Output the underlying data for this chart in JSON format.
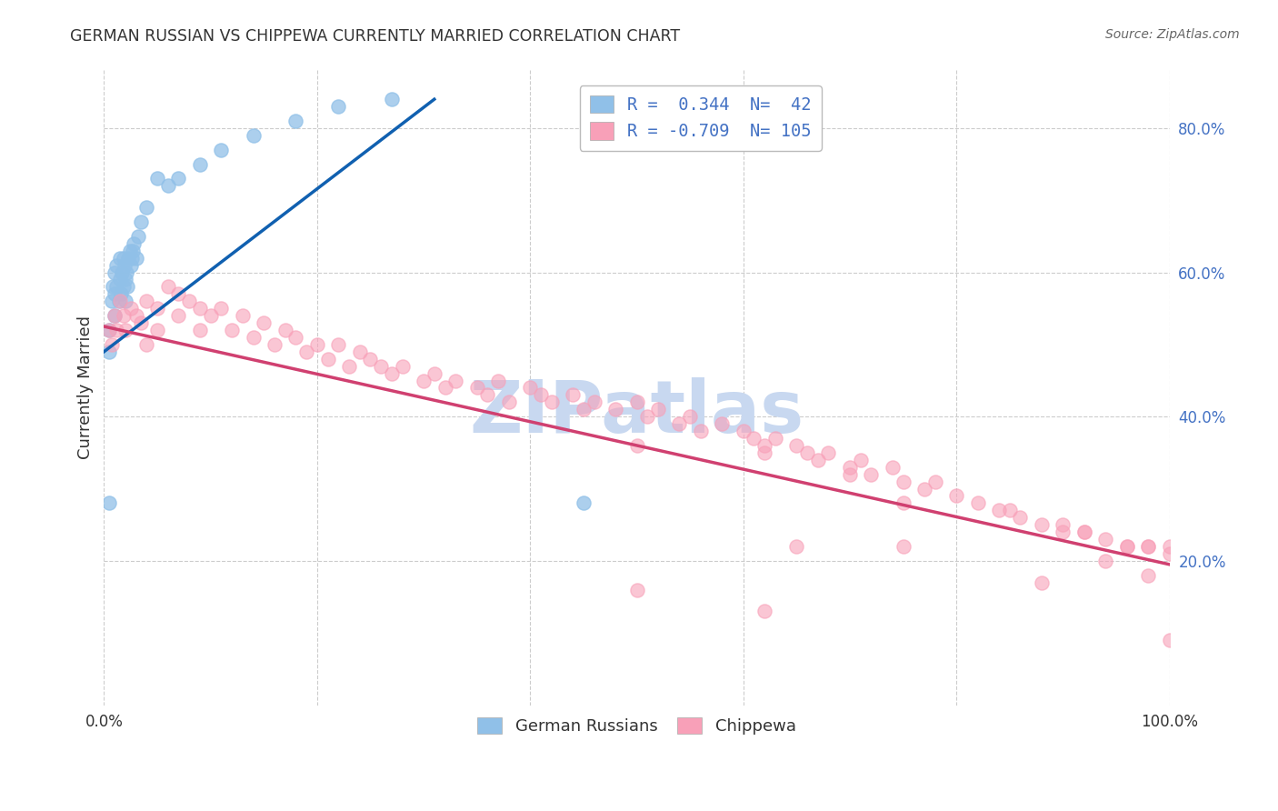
{
  "title": "GERMAN RUSSIAN VS CHIPPEWA CURRENTLY MARRIED CORRELATION CHART",
  "source": "Source: ZipAtlas.com",
  "ylabel": "Currently Married",
  "blue_color": "#90c0e8",
  "blue_edge_color": "#90c0e8",
  "pink_color": "#f8a0b8",
  "pink_edge_color": "#f8a0b8",
  "blue_line_color": "#1060b0",
  "pink_line_color": "#d04070",
  "watermark_text": "ZIPatlas",
  "watermark_color": "#c8d8f0",
  "legend_blue_label": "R =  0.344  N=  42",
  "legend_pink_label": "R = -0.709  N= 105",
  "legend_text_color": "#4472c4",
  "bottom_legend_blue": "German Russians",
  "bottom_legend_pink": "Chippewa",
  "background_color": "#ffffff",
  "grid_color": "#cccccc",
  "title_color": "#333333",
  "source_color": "#666666",
  "ylabel_color": "#333333",
  "tick_color_y": "#4472c4",
  "tick_color_x": "#333333",
  "xlim": [
    0.0,
    1.0
  ],
  "ylim": [
    0.0,
    0.88
  ],
  "ytick_values": [
    0.2,
    0.4,
    0.6,
    0.8
  ],
  "ytick_labels": [
    "20.0%",
    "40.0%",
    "60.0%",
    "80.0%"
  ],
  "blue_line_x0": 0.0,
  "blue_line_y0": 0.49,
  "blue_line_x1": 0.31,
  "blue_line_y1": 0.84,
  "pink_line_x0": 0.0,
  "pink_line_y0": 0.525,
  "pink_line_x1": 1.0,
  "pink_line_y1": 0.195,
  "blue_x": [
    0.005,
    0.005,
    0.007,
    0.008,
    0.01,
    0.01,
    0.01,
    0.012,
    0.012,
    0.014,
    0.015,
    0.015,
    0.016,
    0.017,
    0.018,
    0.018,
    0.019,
    0.02,
    0.02,
    0.021,
    0.022,
    0.023,
    0.024,
    0.025,
    0.026,
    0.027,
    0.028,
    0.03,
    0.032,
    0.035,
    0.04,
    0.05,
    0.06,
    0.07,
    0.09,
    0.11,
    0.14,
    0.18,
    0.22,
    0.27,
    0.005,
    0.45
  ],
  "blue_y": [
    0.49,
    0.52,
    0.56,
    0.58,
    0.54,
    0.57,
    0.6,
    0.58,
    0.61,
    0.56,
    0.59,
    0.62,
    0.57,
    0.6,
    0.58,
    0.62,
    0.61,
    0.56,
    0.59,
    0.6,
    0.58,
    0.62,
    0.63,
    0.61,
    0.62,
    0.63,
    0.64,
    0.62,
    0.65,
    0.67,
    0.69,
    0.73,
    0.72,
    0.73,
    0.75,
    0.77,
    0.79,
    0.81,
    0.83,
    0.84,
    0.28,
    0.28
  ],
  "pink_x": [
    0.005,
    0.007,
    0.01,
    0.012,
    0.015,
    0.018,
    0.02,
    0.025,
    0.03,
    0.035,
    0.04,
    0.04,
    0.05,
    0.05,
    0.06,
    0.07,
    0.07,
    0.08,
    0.09,
    0.09,
    0.1,
    0.11,
    0.12,
    0.13,
    0.14,
    0.15,
    0.16,
    0.17,
    0.18,
    0.19,
    0.2,
    0.21,
    0.22,
    0.23,
    0.24,
    0.25,
    0.26,
    0.27,
    0.28,
    0.3,
    0.31,
    0.32,
    0.33,
    0.35,
    0.36,
    0.37,
    0.38,
    0.4,
    0.41,
    0.42,
    0.44,
    0.45,
    0.46,
    0.48,
    0.5,
    0.51,
    0.52,
    0.54,
    0.55,
    0.56,
    0.58,
    0.6,
    0.61,
    0.62,
    0.63,
    0.65,
    0.66,
    0.67,
    0.68,
    0.7,
    0.71,
    0.72,
    0.74,
    0.75,
    0.77,
    0.78,
    0.8,
    0.82,
    0.84,
    0.86,
    0.88,
    0.9,
    0.92,
    0.94,
    0.96,
    0.98,
    1.0,
    0.5,
    0.62,
    0.75,
    0.85,
    0.9,
    0.92,
    0.96,
    0.98,
    1.0,
    0.5,
    0.62,
    0.65,
    0.7,
    0.75,
    0.88,
    0.94,
    0.98,
    1.0
  ],
  "pink_y": [
    0.52,
    0.5,
    0.54,
    0.52,
    0.56,
    0.54,
    0.52,
    0.55,
    0.54,
    0.53,
    0.56,
    0.5,
    0.55,
    0.52,
    0.58,
    0.57,
    0.54,
    0.56,
    0.55,
    0.52,
    0.54,
    0.55,
    0.52,
    0.54,
    0.51,
    0.53,
    0.5,
    0.52,
    0.51,
    0.49,
    0.5,
    0.48,
    0.5,
    0.47,
    0.49,
    0.48,
    0.47,
    0.46,
    0.47,
    0.45,
    0.46,
    0.44,
    0.45,
    0.44,
    0.43,
    0.45,
    0.42,
    0.44,
    0.43,
    0.42,
    0.43,
    0.41,
    0.42,
    0.41,
    0.42,
    0.4,
    0.41,
    0.39,
    0.4,
    0.38,
    0.39,
    0.38,
    0.37,
    0.36,
    0.37,
    0.36,
    0.35,
    0.34,
    0.35,
    0.33,
    0.34,
    0.32,
    0.33,
    0.31,
    0.3,
    0.31,
    0.29,
    0.28,
    0.27,
    0.26,
    0.25,
    0.24,
    0.24,
    0.23,
    0.22,
    0.22,
    0.22,
    0.36,
    0.35,
    0.28,
    0.27,
    0.25,
    0.24,
    0.22,
    0.22,
    0.21,
    0.16,
    0.13,
    0.22,
    0.32,
    0.22,
    0.17,
    0.2,
    0.18,
    0.09
  ]
}
